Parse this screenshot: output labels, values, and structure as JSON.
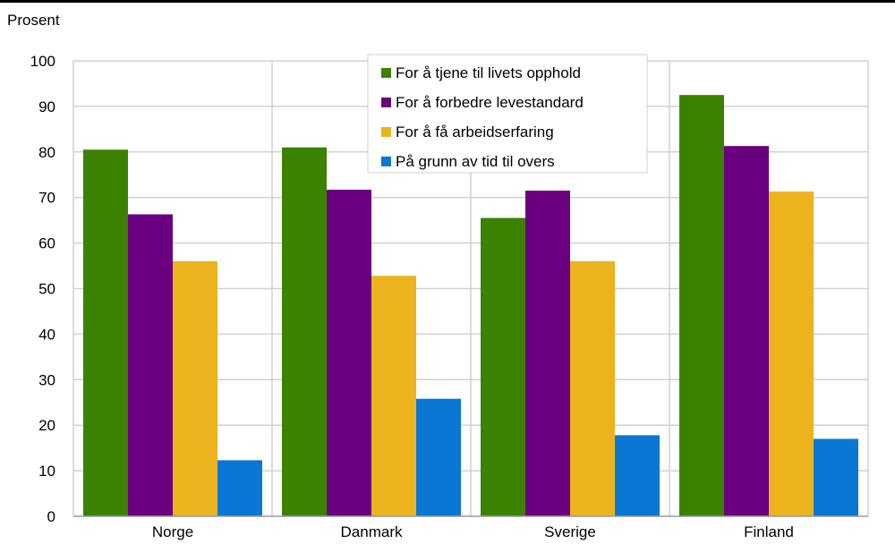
{
  "chart_data": {
    "type": "bar",
    "ylabel": "Prosent",
    "ylim": [
      0,
      100
    ],
    "yticks": [
      0,
      10,
      20,
      30,
      40,
      50,
      60,
      70,
      80,
      90,
      100
    ],
    "categories": [
      "Norge",
      "Danmark",
      "Sverige",
      "Finland"
    ],
    "grid": true,
    "legend_position": "top-center",
    "series": [
      {
        "name": "For å tjene til livets opphold",
        "color": "#3a8200",
        "values": [
          80.5,
          81.0,
          65.5,
          92.5
        ]
      },
      {
        "name": "For å forbedre levestandard",
        "color": "#6a0080",
        "values": [
          66.3,
          71.7,
          71.5,
          81.3
        ]
      },
      {
        "name": "For å få arbeidserfaring",
        "color": "#ecb31f",
        "values": [
          56.0,
          52.8,
          56.0,
          71.3
        ]
      },
      {
        "name": "På grunn av tid til overs",
        "color": "#0a77d5",
        "values": [
          12.3,
          25.8,
          17.8,
          17.0
        ]
      }
    ]
  }
}
